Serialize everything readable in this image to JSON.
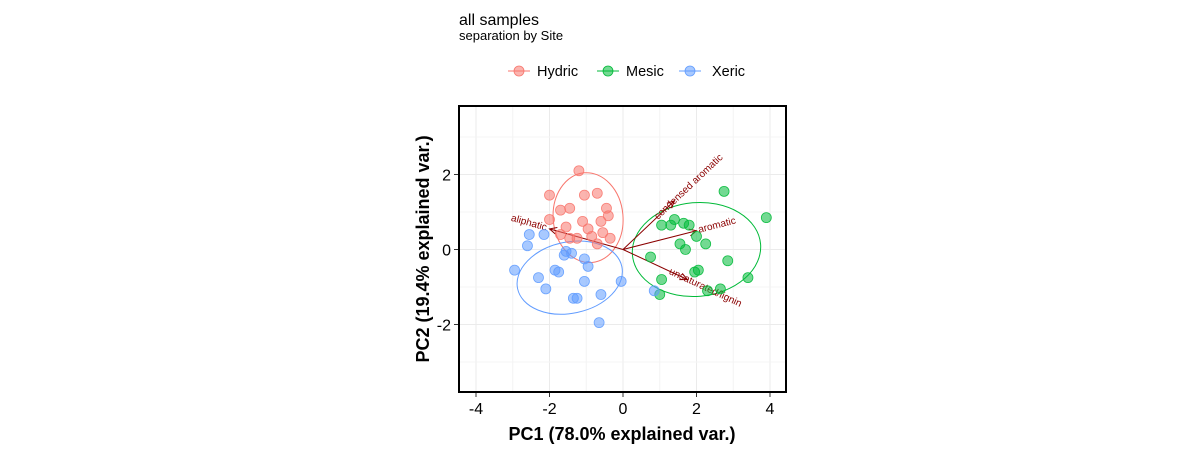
{
  "chart_data": {
    "type": "scatter",
    "title": "all samples",
    "subtitle": "separation by Site",
    "xlabel": "PC1 (78.0% explained var.)",
    "ylabel": "PC2 (19.4% explained var.)",
    "xlim": [
      -4.4,
      4.4
    ],
    "ylim": [
      -3.8,
      3.8
    ],
    "xticks": [
      -4,
      -2,
      0,
      2,
      4
    ],
    "yticks": [
      -2,
      0,
      2
    ],
    "xtick_labels": [
      "-4",
      "-2",
      "0",
      "2",
      "4"
    ],
    "ytick_labels": [
      "-2",
      "0",
      "2"
    ],
    "grid": true,
    "legend_position": "top",
    "series": [
      {
        "name": "Hydric",
        "color": "#f8766d",
        "points": [
          [
            -1.2,
            2.1
          ],
          [
            -2.0,
            1.45
          ],
          [
            -0.7,
            1.5
          ],
          [
            -1.45,
            1.1
          ],
          [
            -1.7,
            1.05
          ],
          [
            -0.45,
            1.1
          ],
          [
            -2.0,
            0.8
          ],
          [
            -1.1,
            0.75
          ],
          [
            -0.6,
            0.75
          ],
          [
            -0.4,
            0.9
          ],
          [
            -0.95,
            0.55
          ],
          [
            -1.55,
            0.6
          ],
          [
            -1.7,
            0.4
          ],
          [
            -0.85,
            0.35
          ],
          [
            -0.55,
            0.45
          ],
          [
            -1.25,
            0.3
          ],
          [
            -0.7,
            0.15
          ],
          [
            -0.35,
            0.3
          ],
          [
            -1.05,
            1.45
          ],
          [
            -1.45,
            0.3
          ]
        ]
      },
      {
        "name": "Mesic",
        "color": "#00ba38",
        "points": [
          [
            2.75,
            1.55
          ],
          [
            3.9,
            0.85
          ],
          [
            1.4,
            0.8
          ],
          [
            1.8,
            0.65
          ],
          [
            1.65,
            0.7
          ],
          [
            1.3,
            0.65
          ],
          [
            2.0,
            0.35
          ],
          [
            1.55,
            0.15
          ],
          [
            0.75,
            -0.2
          ],
          [
            2.25,
            0.15
          ],
          [
            2.85,
            -0.3
          ],
          [
            2.05,
            -0.55
          ],
          [
            1.95,
            -0.6
          ],
          [
            1.05,
            -0.8
          ],
          [
            3.4,
            -0.75
          ],
          [
            2.65,
            -1.05
          ],
          [
            2.3,
            -1.1
          ],
          [
            1.0,
            -1.2
          ],
          [
            1.7,
            0.0
          ],
          [
            1.05,
            0.65
          ]
        ]
      },
      {
        "name": "Xeric",
        "color": "#619cff",
        "points": [
          [
            -2.55,
            0.4
          ],
          [
            -2.15,
            0.4
          ],
          [
            -1.6,
            -0.15
          ],
          [
            -1.05,
            -0.25
          ],
          [
            -2.95,
            -0.55
          ],
          [
            -2.3,
            -0.75
          ],
          [
            -1.75,
            -0.6
          ],
          [
            -0.95,
            -0.45
          ],
          [
            -1.05,
            -0.85
          ],
          [
            -2.1,
            -1.05
          ],
          [
            -1.25,
            -1.3
          ],
          [
            -0.6,
            -1.2
          ],
          [
            -0.05,
            -0.85
          ],
          [
            -0.65,
            -1.95
          ],
          [
            -1.55,
            -0.05
          ],
          [
            -1.85,
            -0.55
          ],
          [
            0.85,
            -1.1
          ],
          [
            -1.35,
            -1.3
          ],
          [
            -2.6,
            0.1
          ],
          [
            -1.4,
            -0.1
          ]
        ]
      }
    ],
    "ellipses": [
      {
        "series": "Hydric",
        "cx": -0.95,
        "cy": 0.85,
        "rx": 0.95,
        "ry": 1.2,
        "angle_deg": -5
      },
      {
        "series": "Mesic",
        "cx": 2.0,
        "cy": 0.0,
        "rx": 1.75,
        "ry": 1.25,
        "angle_deg": -5
      },
      {
        "series": "Xeric",
        "cx": -1.45,
        "cy": -0.75,
        "rx": 1.45,
        "ry": 0.95,
        "angle_deg": -12
      }
    ],
    "arrows": [
      {
        "label": "condensed aromatic",
        "x": 1.4,
        "y": 1.3
      },
      {
        "label": "aromatic",
        "x": 2.0,
        "y": 0.5
      },
      {
        "label": "unsaturated/lignin",
        "x": 1.75,
        "y": -0.8
      },
      {
        "label": "aliphatic",
        "x": -2.0,
        "y": 0.55
      }
    ]
  }
}
